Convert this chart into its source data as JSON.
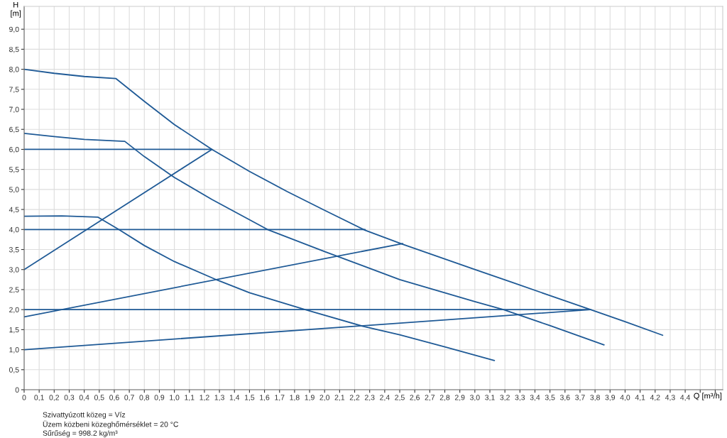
{
  "chart_data": {
    "type": "line",
    "xlabel": "Q [m³/h]",
    "ylabel": "H\n[m]",
    "xlim": [
      0,
      4.65
    ],
    "ylim": [
      0,
      9.57
    ],
    "xticks": [
      0,
      {
        "value": 0.1,
        "label": "0,1"
      },
      {
        "value": 0.2,
        "label": "0,2"
      },
      {
        "value": 0.3,
        "label": "0,3"
      },
      {
        "value": 0.4,
        "label": "0,4"
      },
      {
        "value": 0.5,
        "label": "0,5"
      },
      {
        "value": 0.6,
        "label": "0,6"
      },
      {
        "value": 0.7,
        "label": "0,7"
      },
      {
        "value": 0.8,
        "label": "0,8"
      },
      {
        "value": 0.9,
        "label": "0,9"
      },
      {
        "value": 1.0,
        "label": "1,0"
      },
      {
        "value": 1.1,
        "label": "1,1"
      },
      {
        "value": 1.2,
        "label": "1,2"
      },
      {
        "value": 1.3,
        "label": "1,3"
      },
      {
        "value": 1.4,
        "label": "1,4"
      },
      {
        "value": 1.5,
        "label": "1,5"
      },
      {
        "value": 1.6,
        "label": "1,6"
      },
      {
        "value": 1.7,
        "label": "1,7"
      },
      {
        "value": 1.8,
        "label": "1,8"
      },
      {
        "value": 1.9,
        "label": "1,9"
      },
      {
        "value": 2.0,
        "label": "2,0"
      },
      {
        "value": 2.1,
        "label": "2,1"
      },
      {
        "value": 2.2,
        "label": "2,2"
      },
      {
        "value": 2.3,
        "label": "2,3"
      },
      {
        "value": 2.4,
        "label": "2,4"
      },
      {
        "value": 2.5,
        "label": "2,5"
      },
      {
        "value": 2.6,
        "label": "2,6"
      },
      {
        "value": 2.7,
        "label": "2,7"
      },
      {
        "value": 2.8,
        "label": "2,8"
      },
      {
        "value": 2.9,
        "label": "2,9"
      },
      {
        "value": 3.0,
        "label": "3,0"
      },
      {
        "value": 3.1,
        "label": "3,1"
      },
      {
        "value": 3.2,
        "label": "3,2"
      },
      {
        "value": 3.3,
        "label": "3,3"
      },
      {
        "value": 3.4,
        "label": "3,4"
      },
      {
        "value": 3.5,
        "label": "3,5"
      },
      {
        "value": 3.6,
        "label": "3,6"
      },
      {
        "value": 3.7,
        "label": "3,7"
      },
      {
        "value": 3.8,
        "label": "3,8"
      },
      {
        "value": 3.9,
        "label": "3,9"
      },
      {
        "value": 4.0,
        "label": "4,0"
      },
      {
        "value": 4.1,
        "label": "4,1"
      },
      {
        "value": 4.2,
        "label": "4,2"
      },
      {
        "value": 4.3,
        "label": "4,3"
      },
      {
        "value": 4.4,
        "label": "4,4"
      },
      {
        "value": 4.5,
        "label": null
      },
      {
        "value": 4.6,
        "label": null
      }
    ],
    "yticks": [
      0,
      {
        "value": 0.5,
        "label": "0,5"
      },
      {
        "value": 1.0,
        "label": "1,0"
      },
      {
        "value": 1.5,
        "label": "1,5"
      },
      {
        "value": 2.0,
        "label": "2,0"
      },
      {
        "value": 2.5,
        "label": "2,5"
      },
      {
        "value": 3.0,
        "label": "3,0"
      },
      {
        "value": 3.5,
        "label": "3,5"
      },
      {
        "value": 4.0,
        "label": "4,0"
      },
      {
        "value": 4.5,
        "label": "4,5"
      },
      {
        "value": 5.0,
        "label": "5,0"
      },
      {
        "value": 5.5,
        "label": "5,5"
      },
      {
        "value": 6.0,
        "label": "6,0"
      },
      {
        "value": 6.5,
        "label": "6,5"
      },
      {
        "value": 7.0,
        "label": "7,0"
      },
      {
        "value": 7.5,
        "label": "7,5"
      },
      {
        "value": 8.0,
        "label": "8,0"
      },
      {
        "value": 8.5,
        "label": "8,5"
      },
      {
        "value": 9.0,
        "label": "9,0"
      }
    ],
    "grid": true,
    "marker": "none",
    "line_style": "solid",
    "series": [
      {
        "color": "#1f5a96",
        "x": [
          0,
          0.2,
          0.4,
          0.61,
          0.8,
          1.0,
          1.25,
          1.5,
          1.75,
          2.0,
          2.27,
          2.52,
          2.75,
          3.0,
          3.25,
          3.5,
          3.77,
          4.0,
          4.25
        ],
        "values": [
          8.0,
          7.9,
          7.82,
          7.77,
          7.2,
          6.62,
          6.0,
          5.45,
          4.95,
          4.48,
          3.98,
          3.63,
          3.33,
          3.0,
          2.68,
          2.35,
          2.0,
          1.7,
          1.36
        ]
      },
      {
        "color": "#1f5a96",
        "x": [
          0,
          0.2,
          0.4,
          0.67,
          0.8,
          1.0,
          1.25,
          1.62,
          2.0,
          2.5,
          3.0,
          3.19,
          3.5,
          3.86
        ],
        "values": [
          6.4,
          6.32,
          6.25,
          6.2,
          5.82,
          5.3,
          4.75,
          4.0,
          3.45,
          2.75,
          2.2,
          2.0,
          1.6,
          1.12
        ]
      },
      {
        "color": "#1f5a96",
        "x": [
          0,
          0.25,
          0.49,
          0.63,
          0.8,
          1.0,
          1.29,
          1.5,
          1.87,
          2.25,
          2.5,
          2.8,
          3.13
        ],
        "values": [
          4.33,
          4.34,
          4.31,
          4.0,
          3.6,
          3.2,
          2.73,
          2.42,
          2.0,
          1.59,
          1.37,
          1.07,
          0.73
        ]
      },
      {
        "color": "#1f5a96",
        "x": [
          0,
          1.25
        ],
        "values": [
          6.0,
          6.0
        ]
      },
      {
        "color": "#1f5a96",
        "x": [
          0,
          2.27
        ],
        "values": [
          4.0,
          4.0
        ]
      },
      {
        "color": "#1f5a96",
        "x": [
          0,
          3.77
        ],
        "values": [
          2.0,
          2.0
        ]
      },
      {
        "color": "#1f5a96",
        "x": [
          0,
          1.25
        ],
        "values": [
          3.0,
          6.0
        ]
      },
      {
        "color": "#1f5a96",
        "x": [
          0,
          2.52
        ],
        "values": [
          1.82,
          3.65
        ]
      },
      {
        "color": "#1f5a96",
        "x": [
          0,
          3.77
        ],
        "values": [
          1.0,
          2.0
        ]
      }
    ],
    "annotations": [
      "Szivattyúzott közeg = Víz",
      "Üzem közbeni közeghőmérséklet = 20 °C",
      "Sűrűség = 998.2 kg/m³"
    ]
  }
}
